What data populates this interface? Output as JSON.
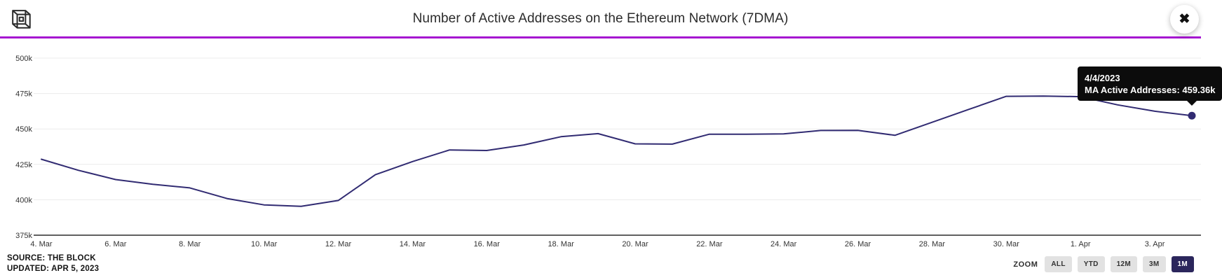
{
  "header": {
    "title": "Number of Active Addresses on the Ethereum Network (7DMA)",
    "close_icon": "✖"
  },
  "colors": {
    "brand_divider": "#a617d1",
    "line": "#312b72",
    "grid": "#ececec",
    "axis": "#2d2d2d",
    "tooltip_bg": "#0c0c0c",
    "tooltip_text": "#ffffff",
    "button_bg": "#e2e2e2",
    "button_selected_bg": "#2b265c"
  },
  "tooltip": {
    "date": "4/4/2023",
    "value_label": "MA Active Addresses: 459.36k"
  },
  "footer": {
    "source": "SOURCE: THE BLOCK",
    "updated": "UPDATED: APR 5, 2023"
  },
  "zoom_controls": {
    "label": "ZOOM",
    "options": [
      {
        "label": "ALL",
        "selected": false
      },
      {
        "label": "YTD",
        "selected": false
      },
      {
        "label": "12M",
        "selected": false
      },
      {
        "label": "3M",
        "selected": false
      },
      {
        "label": "1M",
        "selected": true
      }
    ]
  },
  "chart_data": {
    "type": "line",
    "title": "Number of Active Addresses on the Ethereum Network (7DMA)",
    "y_unit": "k (thousands of addresses)",
    "ylim": [
      375,
      500
    ],
    "grid": true,
    "dates": [
      "3/4/2023",
      "3/5/2023",
      "3/6/2023",
      "3/7/2023",
      "3/8/2023",
      "3/9/2023",
      "3/10/2023",
      "3/11/2023",
      "3/12/2023",
      "3/13/2023",
      "3/14/2023",
      "3/15/2023",
      "3/16/2023",
      "3/17/2023",
      "3/18/2023",
      "3/19/2023",
      "3/20/2023",
      "3/21/2023",
      "3/22/2023",
      "3/23/2023",
      "3/24/2023",
      "3/25/2023",
      "3/26/2023",
      "3/27/2023",
      "3/28/2023",
      "3/29/2023",
      "3/30/2023",
      "3/31/2023",
      "4/1/2023",
      "4/2/2023",
      "4/3/2023",
      "4/4/2023"
    ],
    "series": [
      {
        "name": "MA Active Addresses",
        "color": "#312b72",
        "values": [
          428.6,
          420.8,
          414.3,
          410.9,
          408.4,
          400.9,
          396.4,
          395.4,
          399.5,
          417.7,
          427.0,
          435.2,
          434.8,
          438.7,
          444.5,
          446.7,
          439.5,
          439.3,
          446.3,
          446.3,
          446.5,
          448.9,
          449.0,
          445.5,
          454.7,
          463.9,
          473.0,
          473.2,
          472.8,
          467.0,
          462.5,
          459.36
        ]
      }
    ],
    "y_ticks": [
      {
        "value": 375,
        "label": "375k"
      },
      {
        "value": 400,
        "label": "400k"
      },
      {
        "value": 425,
        "label": "425k"
      },
      {
        "value": 450,
        "label": "450k"
      },
      {
        "value": 475,
        "label": "475k"
      },
      {
        "value": 500,
        "label": "500k"
      }
    ],
    "x_ticks": [
      {
        "index": 0,
        "label": "4. Mar"
      },
      {
        "index": 2,
        "label": "6. Mar"
      },
      {
        "index": 4,
        "label": "8. Mar"
      },
      {
        "index": 6,
        "label": "10. Mar"
      },
      {
        "index": 8,
        "label": "12. Mar"
      },
      {
        "index": 10,
        "label": "14. Mar"
      },
      {
        "index": 12,
        "label": "16. Mar"
      },
      {
        "index": 14,
        "label": "18. Mar"
      },
      {
        "index": 16,
        "label": "20. Mar"
      },
      {
        "index": 18,
        "label": "22. Mar"
      },
      {
        "index": 20,
        "label": "24. Mar"
      },
      {
        "index": 22,
        "label": "26. Mar"
      },
      {
        "index": 24,
        "label": "28. Mar"
      },
      {
        "index": 26,
        "label": "30. Mar"
      },
      {
        "index": 28,
        "label": "1. Apr"
      },
      {
        "index": 30,
        "label": "3. Apr"
      }
    ],
    "last_point": {
      "date": "4/4/2023",
      "value": 459.36,
      "value_label": "459.36k"
    }
  }
}
